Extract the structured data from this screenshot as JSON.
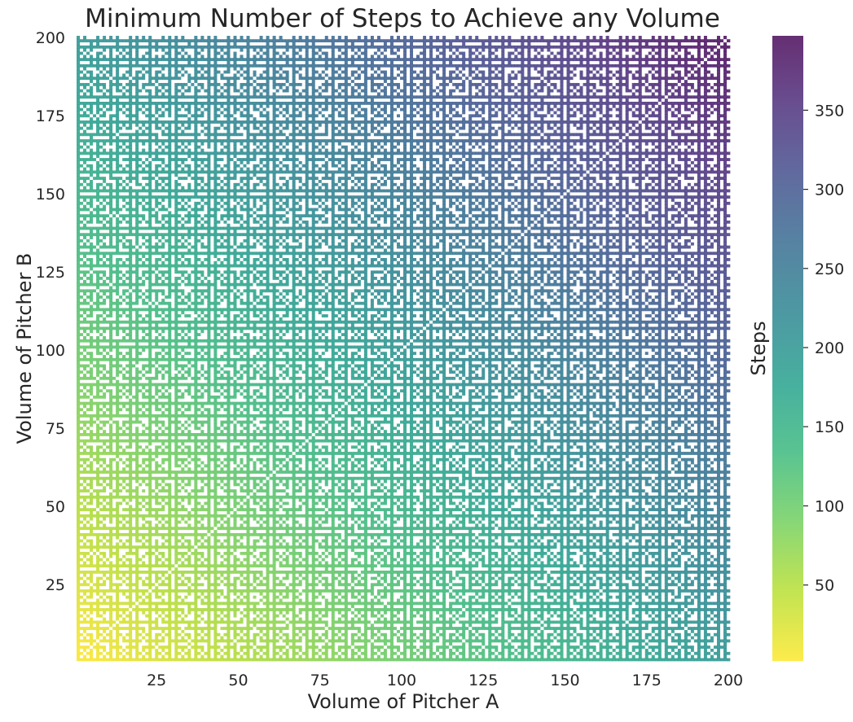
{
  "chart_data": {
    "type": "heatmap",
    "title": "Minimum Number of Steps to Achieve any Volume",
    "xlabel": "Volume of Pitcher A",
    "ylabel": "Volume of Pitcher B",
    "colorbar_label": "Steps",
    "x_range": [
      1,
      200
    ],
    "y_range": [
      1,
      200
    ],
    "x_ticks": [
      25,
      50,
      75,
      100,
      125,
      150,
      175,
      200
    ],
    "y_ticks": [
      25,
      50,
      75,
      100,
      125,
      150,
      175,
      200
    ],
    "x_tick_labels": [
      "25",
      "50",
      "75",
      "100",
      "125",
      "150",
      "175",
      "200"
    ],
    "y_tick_labels": [
      "25",
      "50",
      "75",
      "100",
      "125",
      "150",
      "175",
      "200"
    ],
    "colorbar_range": [
      2,
      397
    ],
    "colorbar_ticks": [
      50,
      100,
      150,
      200,
      250,
      300,
      350
    ],
    "colorbar_tick_labels": [
      "50",
      "100",
      "150",
      "200",
      "250",
      "300",
      "350"
    ],
    "colormap": "viridis_r",
    "missing_cell_color": "#eaeaf2",
    "value_model": "steps ≈ A + B − 3 (white cells: combination cannot achieve every volume)",
    "grid": false
  }
}
